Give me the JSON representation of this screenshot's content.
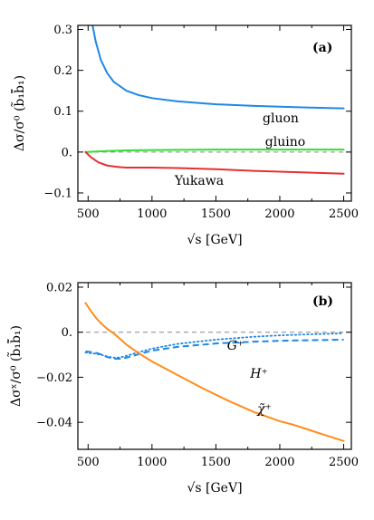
{
  "chart_data": [
    {
      "type": "line",
      "panel_label": "(a)",
      "xlabel": "√s [GeV]",
      "ylabel": "Δσ/σ⁰ (b̃₁b̃̄₁)",
      "xlim": [
        420,
        2560
      ],
      "ylim": [
        -0.12,
        0.31
      ],
      "x_ticks": [
        500,
        1000,
        1500,
        2000,
        2500
      ],
      "x_tick_labels": [
        "500",
        "1000",
        "1500",
        "2000",
        "2500"
      ],
      "y_ticks": [
        -0.1,
        0.0,
        0.1,
        0.2,
        0.3
      ],
      "y_tick_labels": [
        "−0.1",
        "0.",
        "0.1",
        "0.2",
        "0.3"
      ],
      "zero_line": true,
      "legend": "none",
      "series": [
        {
          "name": "gluon",
          "color": "#1f88e5",
          "style": "solid",
          "x": [
            535,
            560,
            600,
            650,
            700,
            800,
            900,
            1000,
            1200,
            1500,
            1800,
            2000,
            2200,
            2500
          ],
          "y": [
            0.31,
            0.27,
            0.225,
            0.193,
            0.172,
            0.15,
            0.139,
            0.132,
            0.124,
            0.117,
            0.113,
            0.111,
            0.109,
            0.107
          ]
        },
        {
          "name": "gluino",
          "color": "#33dd33",
          "style": "solid",
          "x": [
            480,
            600,
            800,
            1000,
            1500,
            2000,
            2500
          ],
          "y": [
            0.0,
            0.002,
            0.004,
            0.005,
            0.006,
            0.006,
            0.006
          ]
        },
        {
          "name": "Yukawa",
          "color": "#e53030",
          "style": "solid",
          "x": [
            480,
            520,
            580,
            650,
            750,
            800,
            900,
            1000,
            1200,
            1500,
            1800,
            2000,
            2200,
            2500
          ],
          "y": [
            0.0,
            -0.012,
            -0.025,
            -0.033,
            -0.037,
            -0.038,
            -0.038,
            -0.038,
            -0.039,
            -0.042,
            -0.046,
            -0.048,
            -0.05,
            -0.053
          ]
        }
      ]
    },
    {
      "type": "line",
      "panel_label": "(b)",
      "xlabel": "√s [GeV]",
      "ylabel": "Δσˣ/σ⁰ (b̃₁b̃̄₁)",
      "xlim": [
        420,
        2560
      ],
      "ylim": [
        -0.052,
        0.022
      ],
      "x_ticks": [
        500,
        1000,
        1500,
        2000,
        2500
      ],
      "x_tick_labels": [
        "500",
        "1000",
        "1500",
        "2000",
        "2500"
      ],
      "y_ticks": [
        -0.04,
        -0.02,
        0.0,
        0.02
      ],
      "y_tick_labels": [
        "−0.04",
        "−0.02",
        "0.",
        "0.02"
      ],
      "zero_line": true,
      "legend": "none",
      "series": [
        {
          "name": "G⁺",
          "color": "#1f88e5",
          "style": "dotted",
          "x": [
            480,
            550,
            600,
            650,
            700,
            750,
            800,
            900,
            1000,
            1200,
            1500,
            1800,
            2000,
            2200,
            2500
          ],
          "y": [
            -0.009,
            -0.0095,
            -0.01,
            -0.0108,
            -0.0113,
            -0.0112,
            -0.0105,
            -0.0088,
            -0.0073,
            -0.0052,
            -0.0033,
            -0.002,
            -0.0014,
            -0.001,
            -0.0005
          ]
        },
        {
          "name": "H⁺",
          "color": "#1f88e5",
          "style": "dashed",
          "x": [
            480,
            550,
            600,
            650,
            700,
            750,
            800,
            900,
            1000,
            1200,
            1500,
            1800,
            2000,
            2200,
            2500
          ],
          "y": [
            -0.0085,
            -0.009,
            -0.0098,
            -0.011,
            -0.0118,
            -0.0118,
            -0.0113,
            -0.0097,
            -0.0082,
            -0.0065,
            -0.005,
            -0.0042,
            -0.0038,
            -0.0036,
            -0.0033
          ]
        },
        {
          "name": "χ̃⁺",
          "color": "#ff8c1a",
          "style": "solid",
          "x": [
            480,
            520,
            560,
            600,
            650,
            700,
            750,
            800,
            900,
            1000,
            1200,
            1400,
            1600,
            1800,
            2000,
            2100,
            2200,
            2300,
            2400,
            2500
          ],
          "y": [
            0.013,
            0.0095,
            0.0065,
            0.004,
            0.0015,
            -0.0005,
            -0.003,
            -0.0055,
            -0.0095,
            -0.013,
            -0.019,
            -0.025,
            -0.0305,
            -0.0355,
            -0.0395,
            -0.041,
            -0.0428,
            -0.0447,
            -0.0465,
            -0.0483
          ]
        }
      ]
    }
  ]
}
